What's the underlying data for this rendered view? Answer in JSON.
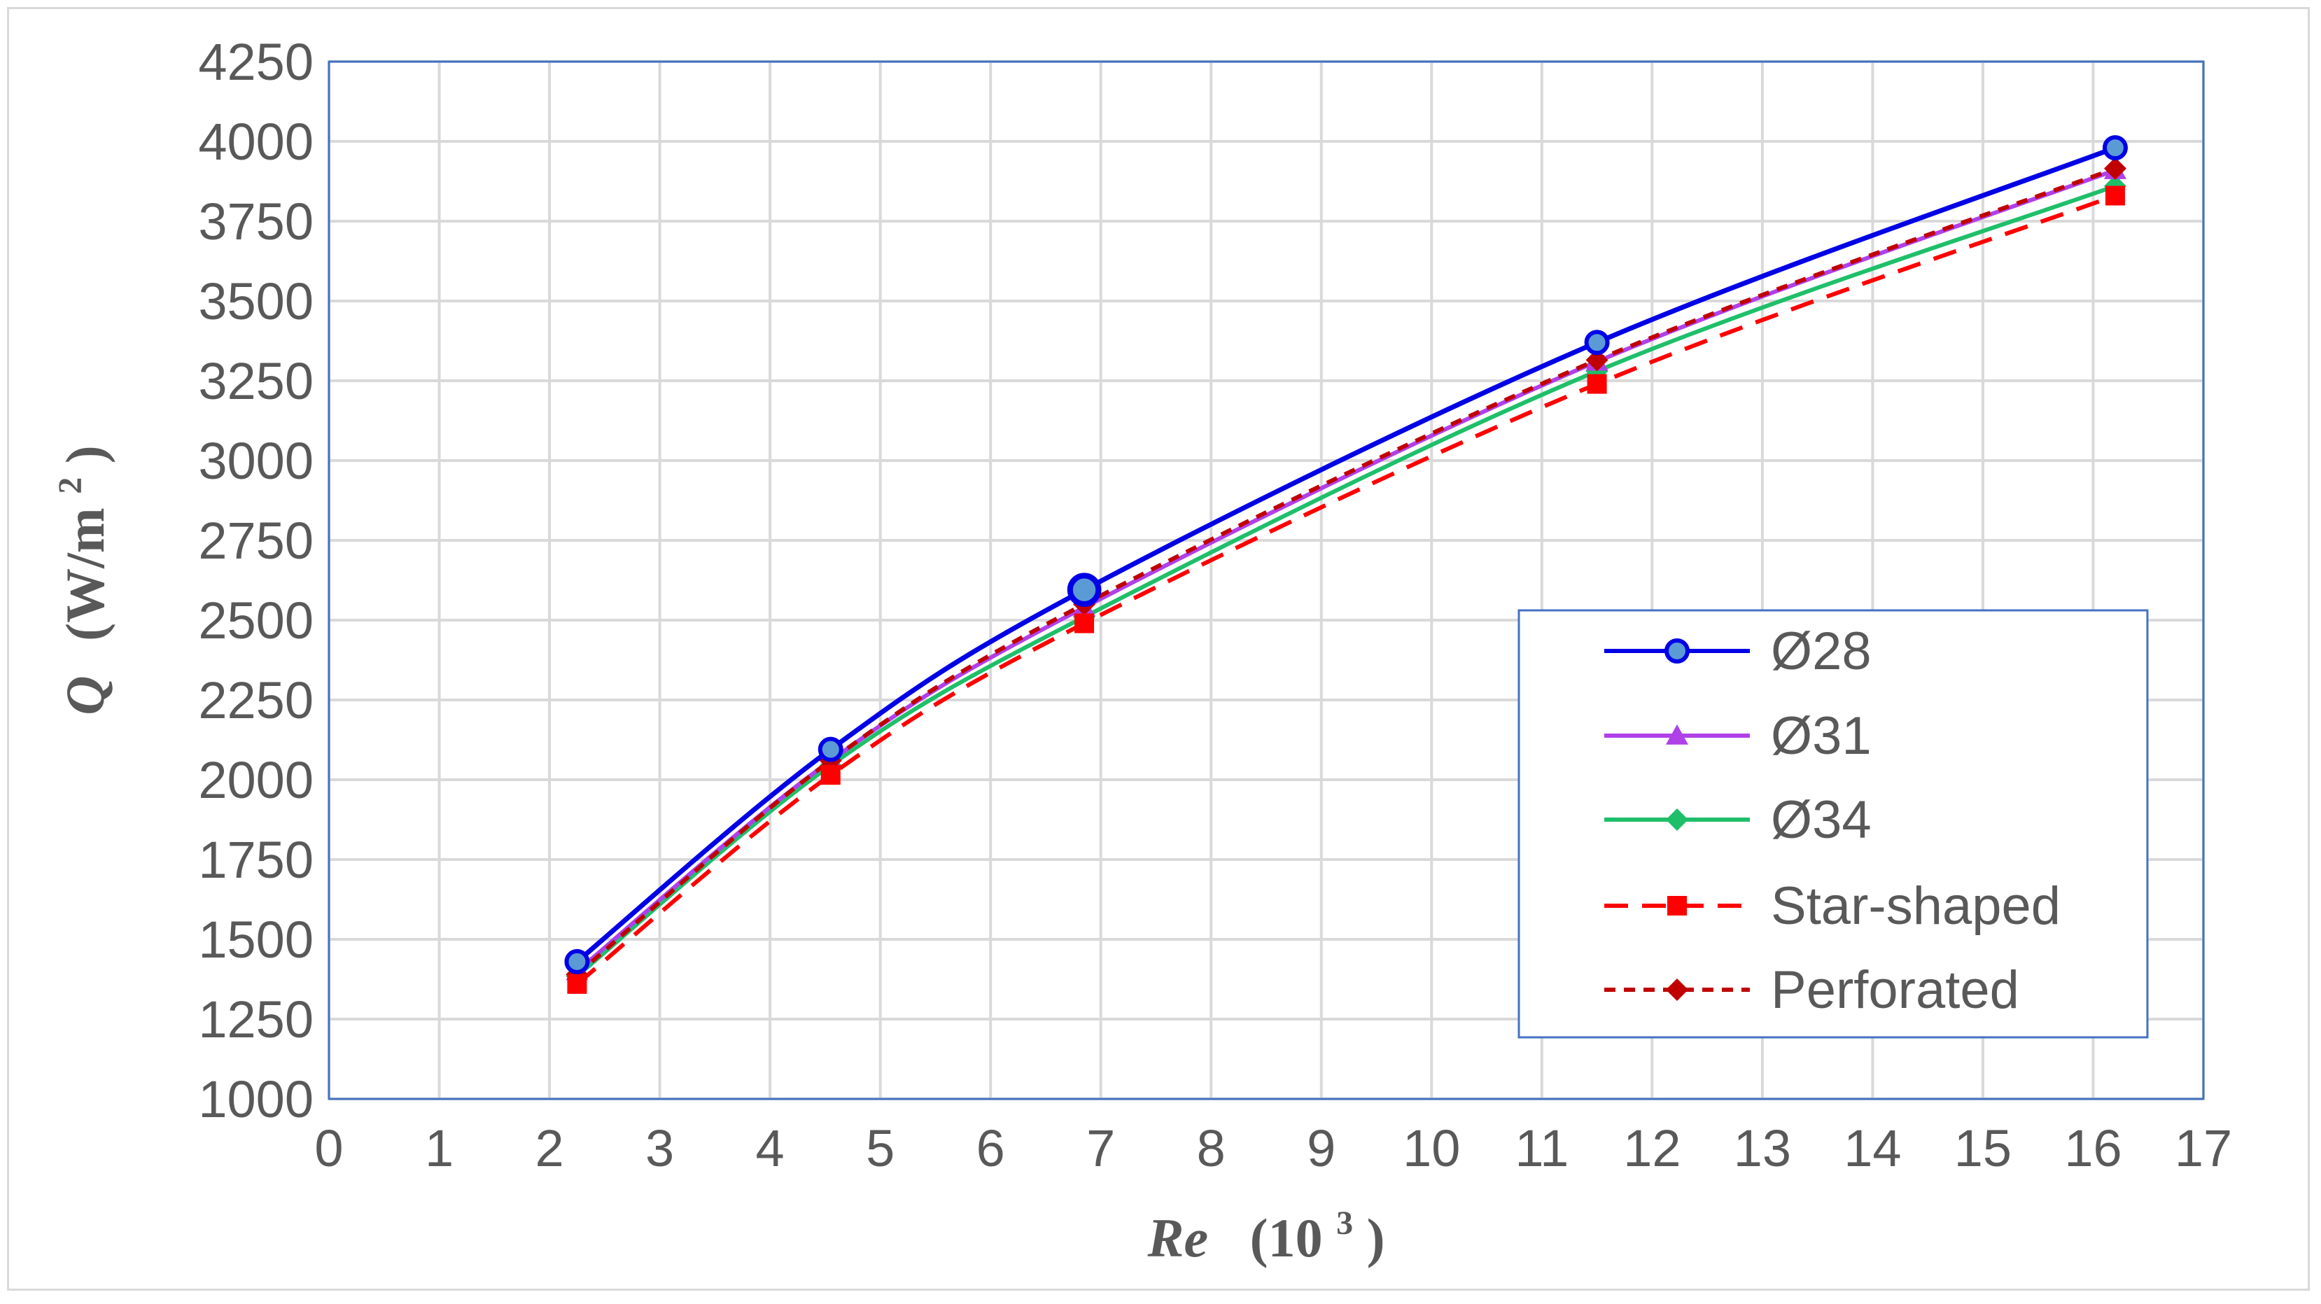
{
  "chart_data": {
    "type": "line",
    "title": "",
    "xlabel": {
      "main": "Re",
      "unit_prefix": "(10",
      "unit_sup": "3",
      "unit_suffix": ")"
    },
    "ylabel": {
      "main": "Q",
      "unit_prefix": "(W/m",
      "unit_sup": "2",
      "unit_suffix": ")"
    },
    "xlim": [
      0,
      17
    ],
    "ylim": [
      1000,
      4250
    ],
    "x_ticks": [
      0,
      1,
      2,
      3,
      4,
      5,
      6,
      7,
      8,
      9,
      10,
      11,
      12,
      13,
      14,
      15,
      16,
      17
    ],
    "y_ticks": [
      1000,
      1250,
      1500,
      1750,
      2000,
      2250,
      2500,
      2750,
      3000,
      3250,
      3500,
      3750,
      4000,
      4250
    ],
    "grid": true,
    "legend_position": "right",
    "x": [
      2.25,
      4.55,
      6.85,
      11.5,
      16.2
    ],
    "series": [
      {
        "name": "Ø28",
        "values": [
          1430,
          2095,
          2595,
          3370,
          3980
        ],
        "color": "#0000e6",
        "marker": "circle",
        "dash": "solid"
      },
      {
        "name": "Ø31",
        "values": [
          1400,
          2060,
          2540,
          3310,
          3910
        ],
        "color": "#b040e8",
        "marker": "triangle",
        "dash": "solid"
      },
      {
        "name": "Ø34",
        "values": [
          1385,
          2045,
          2510,
          3280,
          3860
        ],
        "color": "#1fbf6a",
        "marker": "diamond",
        "dash": "solid"
      },
      {
        "name": "Star-shaped",
        "values": [
          1360,
          2015,
          2490,
          3240,
          3830
        ],
        "color": "#ff0000",
        "marker": "square",
        "dash": "long"
      },
      {
        "name": "Perforated",
        "values": [
          1390,
          2060,
          2550,
          3315,
          3915
        ],
        "color": "#c00000",
        "marker": "diamond",
        "dash": "short"
      }
    ]
  }
}
